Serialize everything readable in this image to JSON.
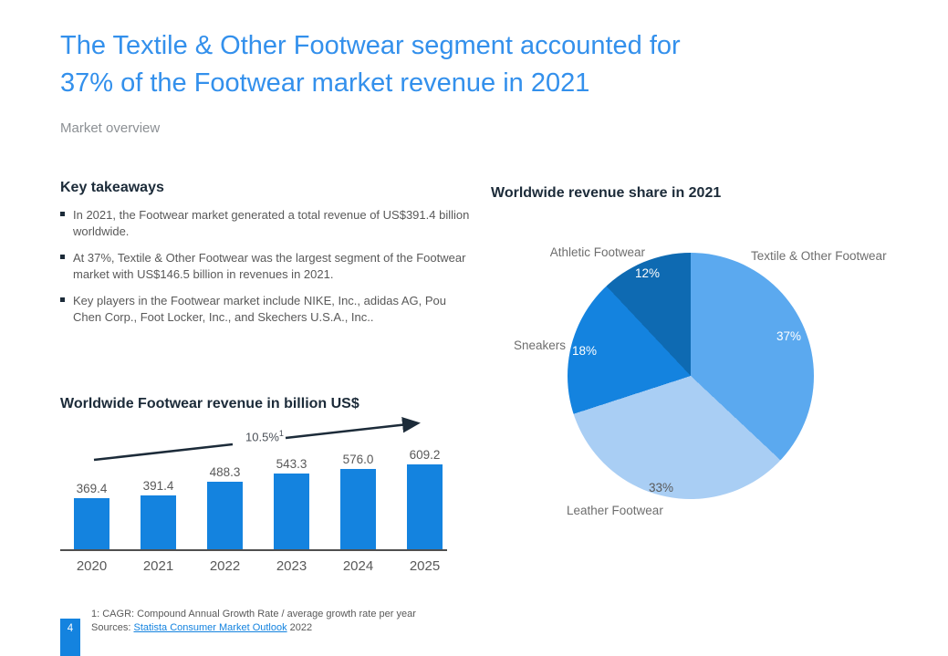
{
  "slide": {
    "title_lines": [
      "The Textile & Other Footwear segment accounted for",
      "37% of the Footwear market revenue in 2021"
    ],
    "subtitle": "Market overview",
    "page_number": "4"
  },
  "key_takeaways": {
    "heading": "Key takeaways",
    "bullets": [
      "In 2021, the Footwear market generated a total revenue of US$391.4 billion worldwide.",
      "At 37%, Textile & Other Footwear was the largest segment of the Footwear market with US$146.5 billion in revenues in 2021.",
      "Key players in the Footwear market include NIKE, Inc., adidas AG, Pou Chen Corp., Foot Locker, Inc., and Skechers U.S.A., Inc.."
    ]
  },
  "footer": {
    "footnote": "1: CAGR: Compound Annual Growth Rate / average growth rate per year",
    "sources_prefix": "Sources:",
    "source_link": "Statista Consumer Market Outlook",
    "source_year": "2022"
  },
  "colors": {
    "title_blue": "#3390EC",
    "dark_navy": "#1C2B39",
    "text_gray": "#595959",
    "accent_blue": "#1483DF"
  },
  "chart_data": [
    {
      "type": "bar",
      "title": "Worldwide Footwear revenue in billion US$",
      "categories": [
        "2020",
        "2021",
        "2022",
        "2023",
        "2024",
        "2025"
      ],
      "values": [
        369.4,
        391.4,
        488.3,
        543.3,
        576.0,
        609.2
      ],
      "unit": "billion US$",
      "bar_color": "#1483DF",
      "growth_annotation": "10.5%",
      "growth_annotation_superscript": "1",
      "value_labels_shown": true,
      "y_axis_shown": false,
      "grid": false,
      "ylim": [
        0,
        650
      ]
    },
    {
      "type": "pie",
      "title": "Worldwide revenue share in 2021",
      "start_angle": "top",
      "direction": "clockwise",
      "slices": [
        {
          "label": "Textile & Other Footwear",
          "value": 37,
          "pct_label": "37%",
          "color": "#5BA9EF",
          "pct_color": "#FFFFFF"
        },
        {
          "label": "Leather Footwear",
          "value": 33,
          "pct_label": "33%",
          "color": "#A9CEF4",
          "pct_color": "#595959"
        },
        {
          "label": "Sneakers",
          "value": 18,
          "pct_label": "18%",
          "color": "#1483DF",
          "pct_color": "#FFFFFF"
        },
        {
          "label": "Athletic Footwear",
          "value": 12,
          "pct_label": "12%",
          "color": "#0E6AB2",
          "pct_color": "#FFFFFF"
        }
      ]
    }
  ]
}
